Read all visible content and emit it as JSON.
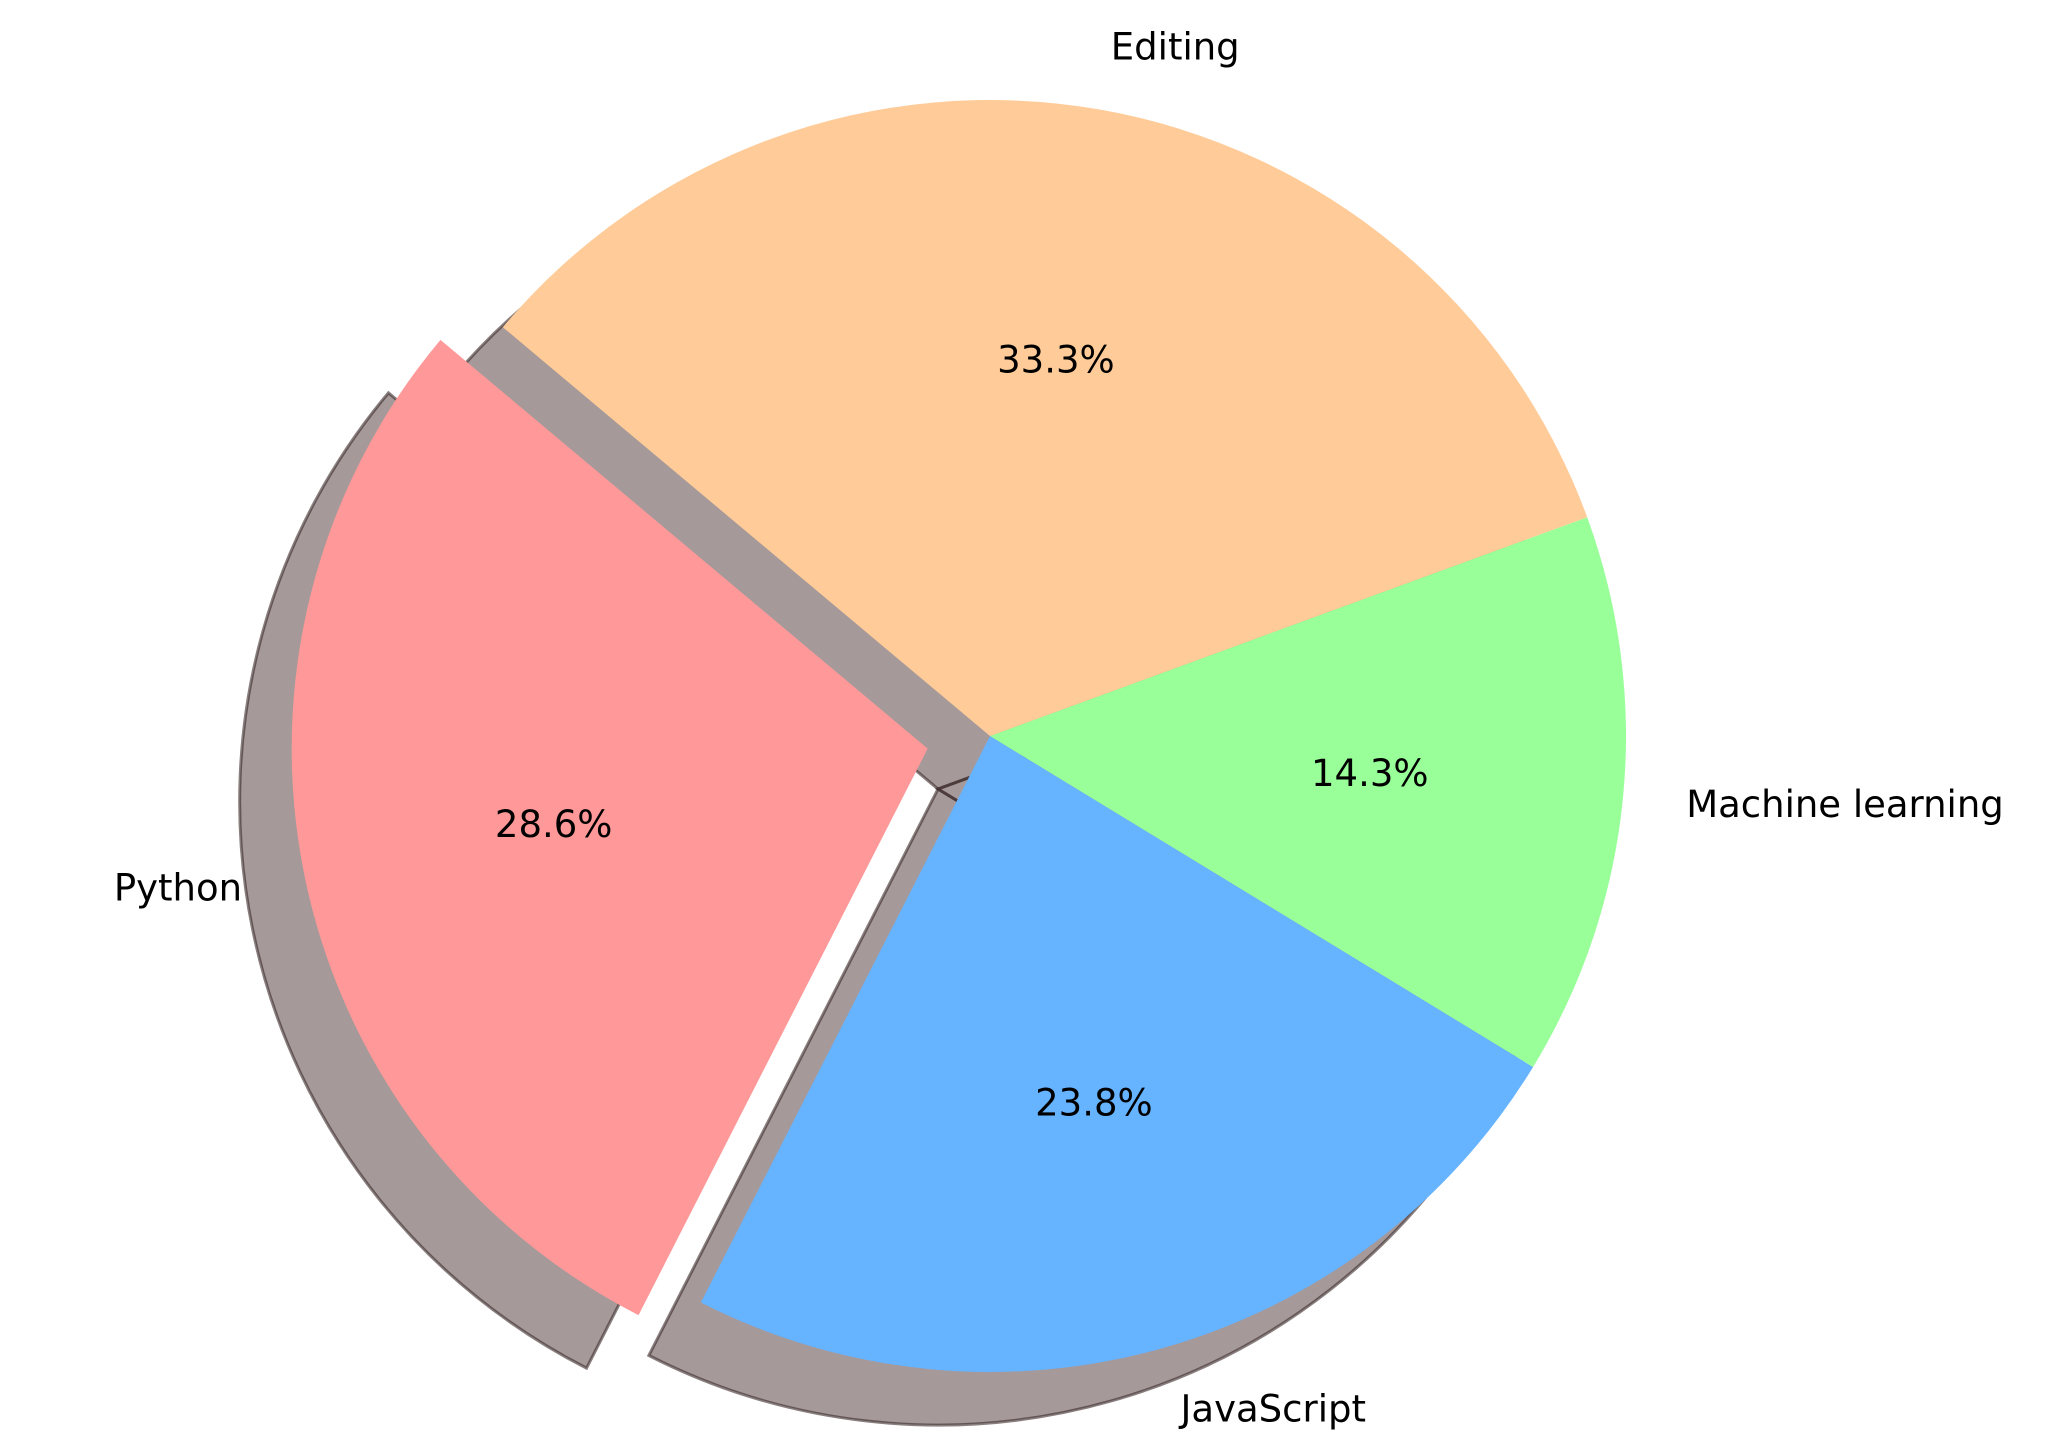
{
  "chart_data": {
    "type": "pie",
    "title": "",
    "slices": [
      {
        "label": "Python",
        "value": 28.6,
        "pct_label": "28.6%",
        "color": "#ff9999",
        "exploded": true
      },
      {
        "label": "JavaScript",
        "value": 23.8,
        "pct_label": "23.8%",
        "color": "#66b3ff",
        "exploded": false
      },
      {
        "label": "Machine learning",
        "value": 14.3,
        "pct_label": "14.3%",
        "color": "#99ff99",
        "exploded": false
      },
      {
        "label": "Editing",
        "value": 33.3,
        "pct_label": "33.3%",
        "color": "#ffcc99",
        "exploded": false
      }
    ],
    "start_angle_deg": 140,
    "direction": "counterclockwise",
    "shadow": true,
    "legend": "none"
  }
}
